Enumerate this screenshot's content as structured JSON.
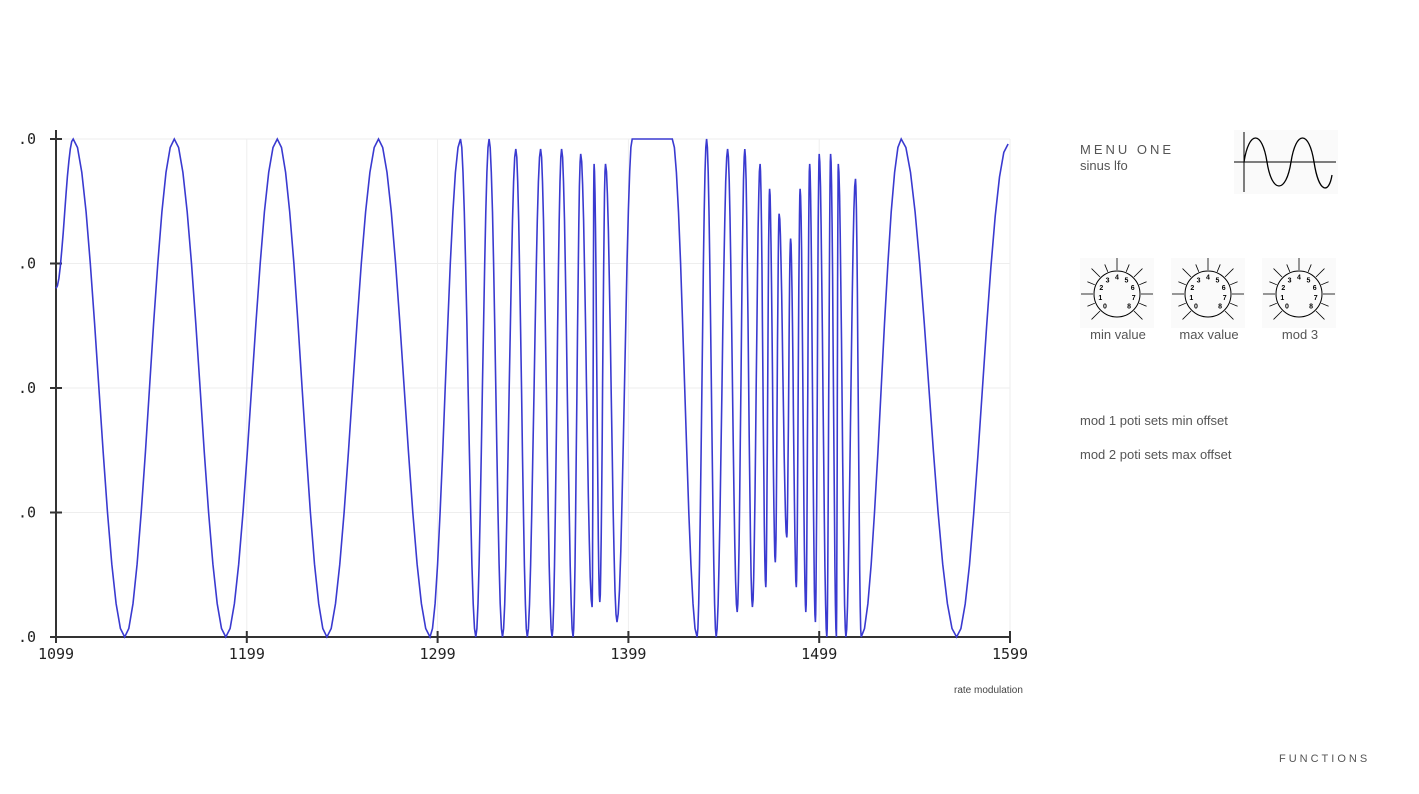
{
  "chart_data": {
    "type": "line",
    "title": "",
    "xlabel": "",
    "ylabel": "",
    "xlim": [
      1099,
      1599
    ],
    "ylim": [
      0,
      1
    ],
    "x_ticks": [
      "1099",
      "1199",
      "1299",
      "1399",
      "1499",
      "1599"
    ],
    "x_tick_values": [
      1099,
      1199,
      1299,
      1399,
      1499,
      1599
    ],
    "y_ticks": [
      ".0",
      ".0",
      ".0",
      ".0",
      ".0"
    ],
    "y_tick_values": [
      0,
      0.25,
      0.5,
      0.75,
      1
    ],
    "grid": true,
    "line_color": "#3a3ad0",
    "series": [
      {
        "points": [
          [
            1099,
            0.7
          ],
          [
            1108,
            1
          ],
          [
            1135,
            0
          ],
          [
            1161,
            1
          ],
          [
            1188,
            0
          ],
          [
            1215,
            1
          ],
          [
            1241,
            0
          ],
          [
            1268,
            1
          ],
          [
            1295,
            0
          ],
          [
            1311,
            1
          ],
          [
            1319,
            0
          ],
          [
            1326,
            1
          ],
          [
            1333,
            0
          ],
          [
            1340,
            0.98
          ],
          [
            1346,
            0
          ],
          [
            1353,
            0.98
          ],
          [
            1359,
            0
          ],
          [
            1364,
            0.98
          ],
          [
            1370,
            0
          ],
          [
            1374,
            0.97
          ],
          [
            1380,
            0.06
          ],
          [
            1381,
            0.95
          ],
          [
            1384,
            0.07
          ],
          [
            1387,
            0.95
          ],
          [
            1393,
            0.03
          ],
          [
            1401,
            1
          ],
          [
            1422,
            1
          ],
          [
            1435,
            0
          ],
          [
            1440,
            1
          ],
          [
            1445,
            0
          ],
          [
            1451,
            0.98
          ],
          [
            1456,
            0.05
          ],
          [
            1460,
            0.98
          ],
          [
            1464,
            0.06
          ],
          [
            1468,
            0.95
          ],
          [
            1471,
            0.1
          ],
          [
            1473,
            0.9
          ],
          [
            1476,
            0.15
          ],
          [
            1478,
            0.85
          ],
          [
            1482,
            0.2
          ],
          [
            1484,
            0.8
          ],
          [
            1487,
            0.1
          ],
          [
            1489,
            0.9
          ],
          [
            1492,
            0.05
          ],
          [
            1494,
            0.95
          ],
          [
            1497,
            0.03
          ],
          [
            1499,
            0.97
          ],
          [
            1503,
            0
          ],
          [
            1505,
            0.97
          ],
          [
            1508,
            0
          ],
          [
            1509,
            0.95
          ],
          [
            1513,
            0
          ],
          [
            1518,
            0.92
          ],
          [
            1521,
            0
          ],
          [
            1542,
            1
          ],
          [
            1571,
            0
          ],
          [
            1598,
            0.99
          ]
        ]
      }
    ]
  },
  "caption": "rate modulation",
  "menu": {
    "title": "MENU ONE",
    "subtitle": "sinus lfo",
    "waveform_icon": "sine-wave-icon"
  },
  "knobs": [
    {
      "label": "min value"
    },
    {
      "label": "max value"
    },
    {
      "label": "mod 3"
    }
  ],
  "knob_scale": [
    "0",
    "1",
    "2",
    "3",
    "4",
    "5",
    "6",
    "7",
    "8"
  ],
  "notes": [
    "mod 1 poti sets min offset",
    "mod 2 poti sets max offset"
  ],
  "footer": "FUNCTIONS"
}
